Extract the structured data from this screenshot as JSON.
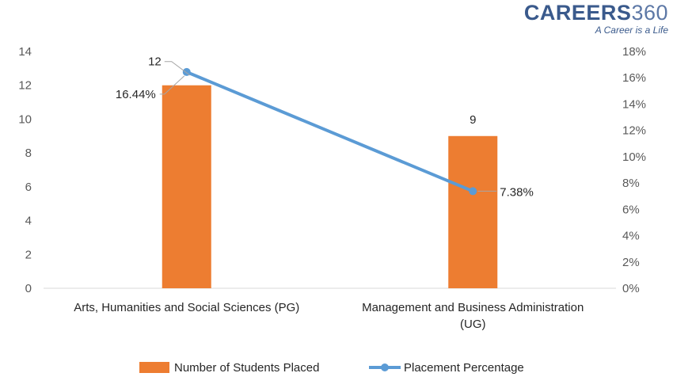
{
  "brand": {
    "name": "CAREERS",
    "number": "360",
    "tagline": "A Career is a Life"
  },
  "colors": {
    "bar": "#ED7D31",
    "line": "#5B9BD5",
    "axis": "#D9D9D9",
    "leader": "#A6A6A6"
  },
  "chart_data": {
    "type": "bar",
    "categories": [
      [
        "Arts, Humanities and Social Sciences (PG)"
      ],
      [
        "Management and Business Administration",
        "(UG)"
      ]
    ],
    "series": [
      {
        "name": "Number of Students Placed",
        "type": "bar",
        "axis": "left",
        "values": [
          12,
          9
        ],
        "labels": [
          "12",
          "9"
        ]
      },
      {
        "name": "Placement Percentage",
        "type": "line",
        "axis": "right",
        "values": [
          16.44,
          7.38
        ],
        "labels": [
          "16.44%",
          "7.38%"
        ]
      }
    ],
    "y_left": {
      "min": 0,
      "max": 14,
      "ticks": [
        "0",
        "2",
        "4",
        "6",
        "8",
        "10",
        "12",
        "14"
      ]
    },
    "y_right": {
      "min": 0,
      "max": 18,
      "ticks": [
        "0%",
        "2%",
        "4%",
        "6%",
        "8%",
        "10%",
        "12%",
        "14%",
        "16%",
        "18%"
      ]
    },
    "grid": false,
    "legend": "bottom"
  }
}
